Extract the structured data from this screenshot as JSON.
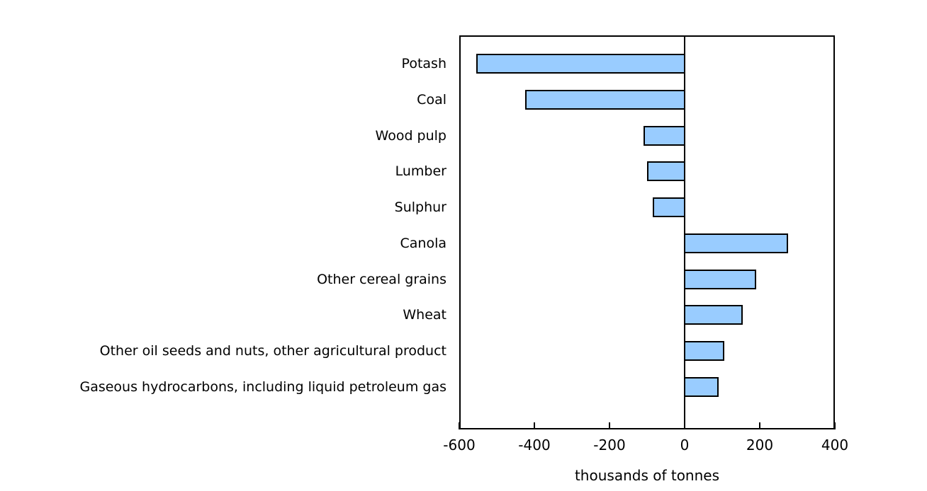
{
  "chart_data": {
    "type": "bar",
    "orientation": "horizontal",
    "title": "",
    "xlabel": "thousands of tonnes",
    "ylabel": "",
    "categories": [
      "Potash",
      "Coal",
      "Wood pulp",
      "Lumber",
      "Sulphur",
      "Canola",
      "Other cereal grains",
      "Wheat",
      "Other oil seeds and nuts, other agricultural product",
      "Gaseous hydrocarbons, including liquid petroleum gas"
    ],
    "values": [
      -555,
      -425,
      -110,
      -100,
      -85,
      275,
      190,
      155,
      105,
      90
    ],
    "xlim": [
      -600,
      400
    ],
    "xticks": [
      -600,
      -400,
      -200,
      0,
      200,
      400
    ],
    "grid": false,
    "legend": false,
    "bar_fill_color": "#99ccff",
    "bar_border_color": "#000000",
    "axis_color": "#000000",
    "background_color": "#ffffff"
  }
}
